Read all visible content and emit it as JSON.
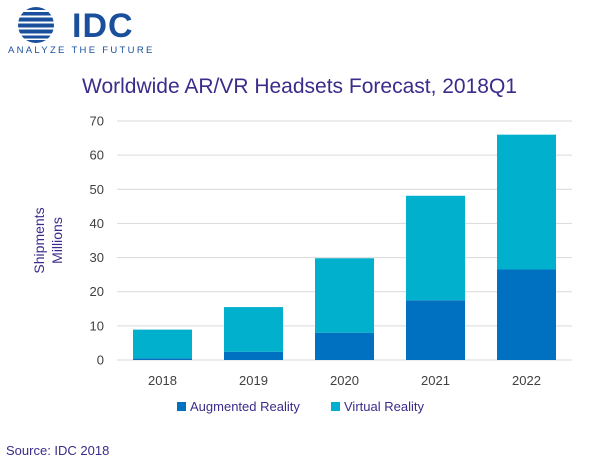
{
  "brand": {
    "name": "IDC",
    "tagline": "ANALYZE THE FUTURE"
  },
  "source": "Source: IDC 2018",
  "colors": {
    "ar": "#0070c0",
    "vr": "#00b0cc",
    "grid": "#d9d9d9",
    "title": "#3a2c8a"
  },
  "chart_data": {
    "type": "bar",
    "stacked": true,
    "title": "Worldwide AR/VR Headsets Forecast, 2018Q1",
    "xlabel": "",
    "ylabel": "Shipments Millions",
    "ylabel_lines": [
      "Shipments",
      "Millions"
    ],
    "categories": [
      "2018",
      "2019",
      "2020",
      "2021",
      "2022"
    ],
    "series": [
      {
        "name": "Augmented Reality",
        "values": [
          0.5,
          2.4,
          8.0,
          17.5,
          26.5
        ]
      },
      {
        "name": "Virtual Reality",
        "values": [
          8.4,
          13.1,
          21.8,
          30.6,
          39.5
        ]
      }
    ],
    "ylim": [
      0,
      70
    ],
    "yticks": [
      0,
      10,
      20,
      30,
      40,
      50,
      60,
      70
    ],
    "grid": true,
    "legend": "bottom"
  }
}
